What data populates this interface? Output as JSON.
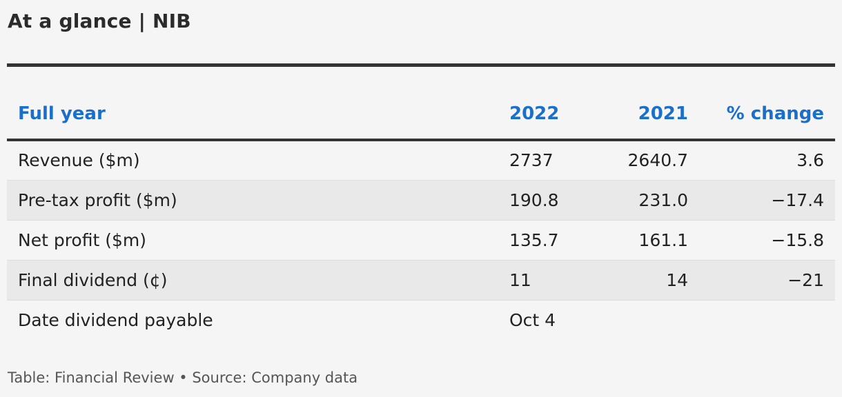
{
  "title": "At a glance | NIB",
  "footer": "Table: Financial Review • Source: Company data",
  "colors": {
    "header_text": "#1b6fc9",
    "rule": "#333333",
    "stripe": "#e9e9e9",
    "background": "#f5f5f5"
  },
  "chart_data": {
    "type": "table",
    "columns": [
      "Full year",
      "2022",
      "2021",
      "% change"
    ],
    "rows": [
      [
        "Revenue ($m)",
        "2737",
        "2640.7",
        "3.6"
      ],
      [
        "Pre-tax profit ($m)",
        "190.8",
        "231.0",
        "−17.4"
      ],
      [
        "Net profit ($m)",
        "135.7",
        "161.1",
        "−15.8"
      ],
      [
        "Final dividend (¢)",
        "11",
        "14",
        "−21"
      ],
      [
        "Date dividend payable",
        "Oct 4",
        "",
        ""
      ]
    ]
  }
}
